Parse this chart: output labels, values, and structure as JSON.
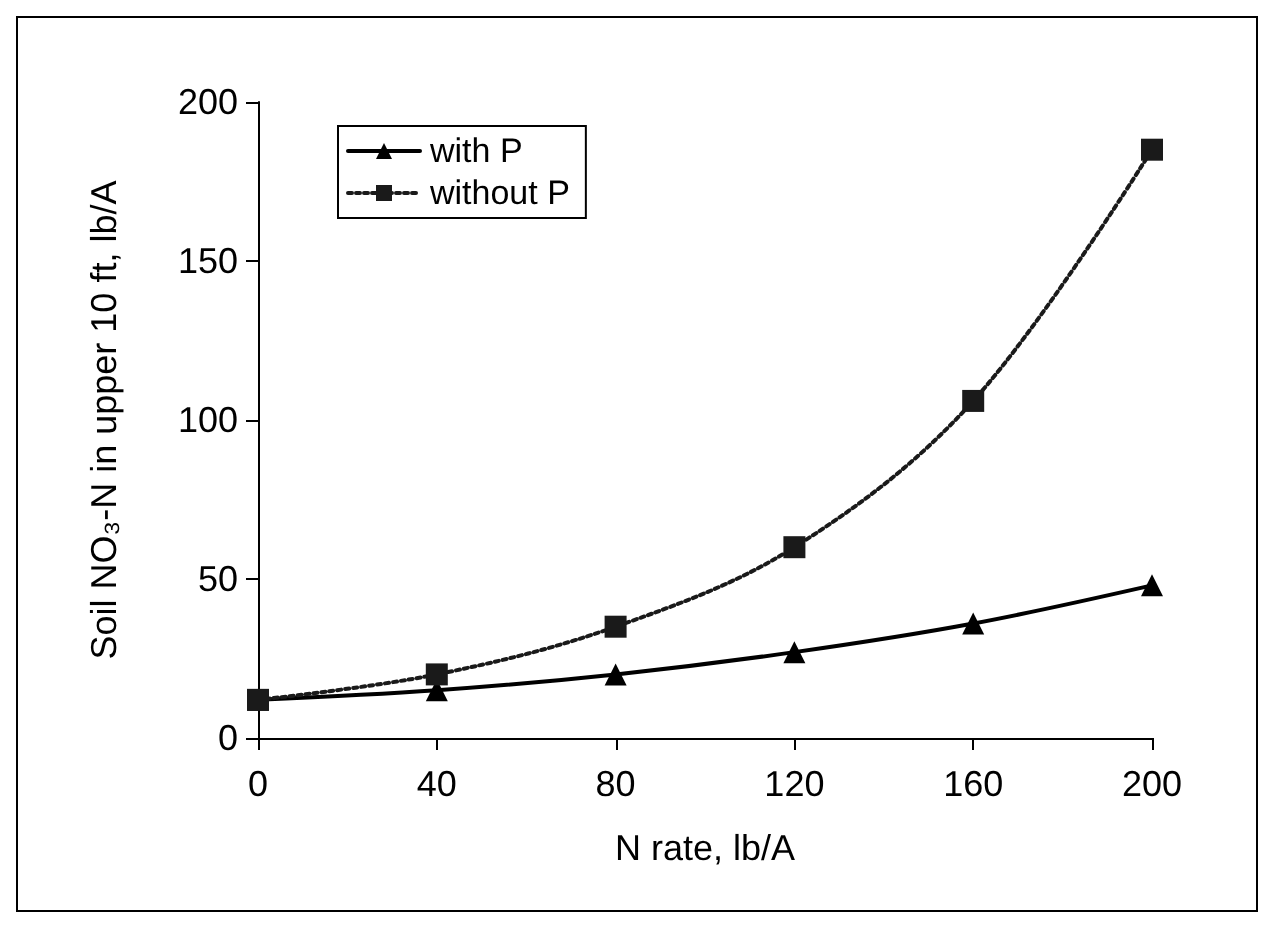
{
  "chart_data": {
    "type": "line",
    "xlabel": "N rate, lb/A",
    "ylabel": "Soil NO₃-N in upper 10 ft, lb/A",
    "x": [
      0,
      40,
      80,
      120,
      160,
      200
    ],
    "series": [
      {
        "name": "with P",
        "color": "#000000",
        "marker": "triangle",
        "line_style": "solid",
        "values": [
          12,
          15,
          20,
          27,
          36,
          48
        ]
      },
      {
        "name": "without P",
        "color": "#1a1a1a",
        "marker": "square",
        "line_style": "dotted",
        "values": [
          12,
          20,
          35,
          60,
          106,
          185
        ]
      }
    ],
    "xlim": [
      0,
      200
    ],
    "xticks": [
      0,
      40,
      80,
      120,
      160,
      200
    ],
    "ylim": [
      0,
      200
    ],
    "yticks": [
      0,
      50,
      100,
      150,
      200
    ],
    "grid": false,
    "legend": "top left"
  }
}
